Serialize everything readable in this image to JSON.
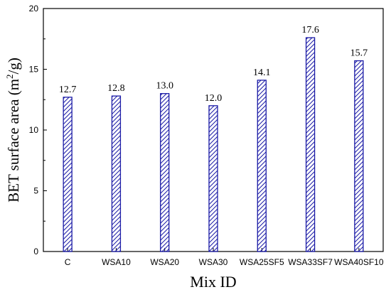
{
  "chart_data": {
    "type": "bar",
    "categories": [
      "C",
      "WSA10",
      "WSA20",
      "WSA30",
      "WSA25SF5",
      "WSA33SF7",
      "WSA40SF10"
    ],
    "values": [
      12.7,
      12.8,
      13.0,
      12.0,
      14.1,
      17.6,
      15.7
    ],
    "data_labels": [
      "12.7",
      "12.8",
      "13.0",
      "12.0",
      "14.1",
      "17.6",
      "15.7"
    ],
    "title": "",
    "xlabel": "Mix ID",
    "ylabel_main": "BET surface area (m",
    "ylabel_sup": "2",
    "ylabel_end": "/g)",
    "ylim": [
      0,
      20
    ],
    "yticks": [
      0,
      5,
      10,
      15,
      20
    ],
    "ytick_labels": [
      "0",
      "5",
      "10",
      "15",
      "20"
    ],
    "grid": false,
    "legend": "none",
    "bar_edge_color": "#1a1aa6",
    "bar_hatch_color": "#1a1aa6",
    "bar_fill": "#ffffff",
    "axis_color": "#000000"
  }
}
